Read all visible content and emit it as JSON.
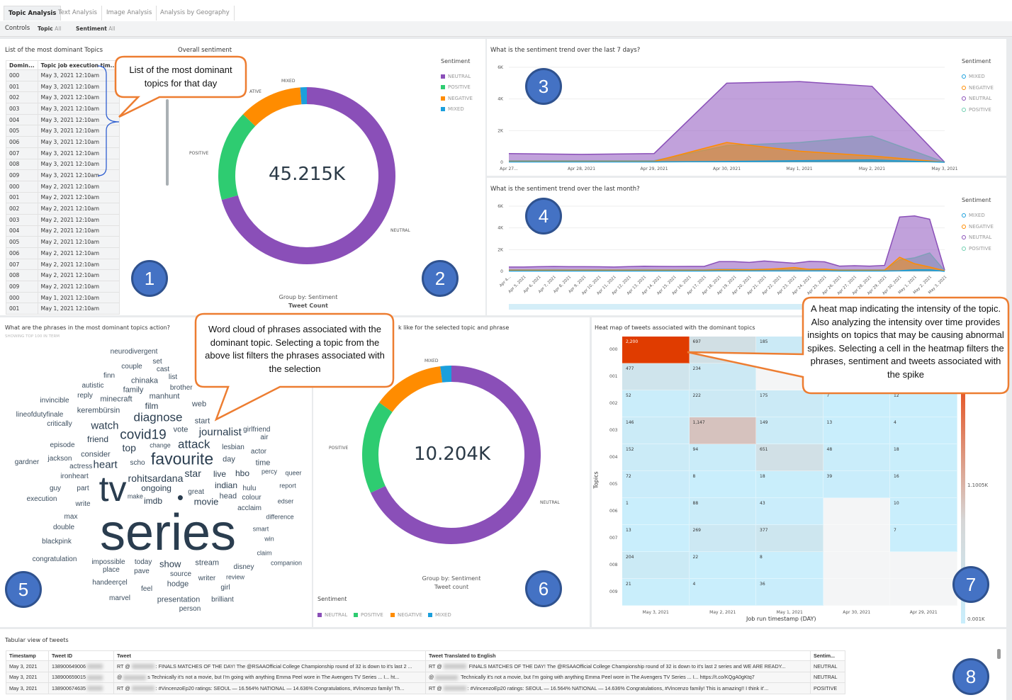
{
  "tabs": [
    {
      "label": "Topic Analysis",
      "active": true
    },
    {
      "label": "Text Analysis"
    },
    {
      "label": "Image Analysis"
    },
    {
      "label": "Analysis by Geography"
    }
  ],
  "controls": {
    "label": "Controls",
    "topic_label": "Topic",
    "topic_value": "All",
    "sentiment_label": "Sentiment",
    "sentiment_value": "All"
  },
  "colors": {
    "neutral": "#8a4fb8",
    "positive": "#2ecc71",
    "negative": "#ff8c00",
    "mixed": "#1b9fdc",
    "callout_border": "#ed7d31",
    "badge": "#4472c4"
  },
  "topics_panel": {
    "title": "List of the most dominant Topics",
    "columns": [
      "Domin...",
      "Topic job execution tim..."
    ],
    "rows": [
      [
        "000",
        "May 3, 2021 12:10am"
      ],
      [
        "001",
        "May 3, 2021 12:10am"
      ],
      [
        "002",
        "May 3, 2021 12:10am"
      ],
      [
        "003",
        "May 3, 2021 12:10am"
      ],
      [
        "004",
        "May 3, 2021 12:10am"
      ],
      [
        "005",
        "May 3, 2021 12:10am"
      ],
      [
        "006",
        "May 3, 2021 12:10am"
      ],
      [
        "007",
        "May 3, 2021 12:10am"
      ],
      [
        "008",
        "May 3, 2021 12:10am"
      ],
      [
        "009",
        "May 3, 2021 12:10am"
      ],
      [
        "000",
        "May 2, 2021 12:10am"
      ],
      [
        "001",
        "May 2, 2021 12:10am"
      ],
      [
        "002",
        "May 2, 2021 12:10am"
      ],
      [
        "003",
        "May 2, 2021 12:10am"
      ],
      [
        "004",
        "May 2, 2021 12:10am"
      ],
      [
        "005",
        "May 2, 2021 12:10am"
      ],
      [
        "006",
        "May 2, 2021 12:10am"
      ],
      [
        "007",
        "May 2, 2021 12:10am"
      ],
      [
        "008",
        "May 2, 2021 12:10am"
      ],
      [
        "009",
        "May 2, 2021 12:10am"
      ],
      [
        "000",
        "May 1, 2021 12:10am"
      ],
      [
        "001",
        "May 1, 2021 12:10am"
      ]
    ]
  },
  "chart_data": [
    {
      "type": "pie",
      "title": "Overall sentiment",
      "center_label": "45.215K",
      "labels": [
        "NEUTRAL",
        "POSITIVE",
        "NEGATIVE",
        "MIXED"
      ],
      "values": [
        70.6,
        16.6,
        11.6,
        1.2
      ],
      "slice_labels": [
        "NEUTRAL",
        "POSITIVE",
        "ATIVE",
        "MIXED"
      ],
      "legend_title": "Sentiment",
      "legend": [
        "NEUTRAL",
        "POSITIVE",
        "NEGATIVE",
        "MIXED"
      ],
      "footer": [
        "Group by: Sentiment",
        "Tweet Count"
      ]
    },
    {
      "type": "area",
      "title": "What is the sentiment trend over the last 7 days?",
      "legend_title": "Sentiment",
      "legend": [
        "MIXED",
        "NEGATIVE",
        "NEUTRAL",
        "POSITIVE"
      ],
      "x": [
        "Apr 27...",
        "Apr 28, 2021",
        "Apr 29, 2021",
        "Apr 30, 2021",
        "May 1, 2021",
        "May 2, 2021",
        "May 3, 2021"
      ],
      "yticks": [
        "0",
        "2K",
        "4K",
        "6K"
      ],
      "ylim": [
        0,
        6000
      ],
      "series": [
        {
          "name": "NEUTRAL",
          "values": [
            550,
            500,
            550,
            5000,
            5100,
            4800,
            0
          ]
        },
        {
          "name": "POSITIVE",
          "values": [
            100,
            100,
            100,
            1050,
            1250,
            1650,
            0
          ]
        },
        {
          "name": "NEGATIVE",
          "values": [
            50,
            50,
            50,
            1250,
            700,
            400,
            0
          ]
        },
        {
          "name": "MIXED",
          "values": [
            20,
            20,
            20,
            50,
            100,
            150,
            0
          ]
        }
      ]
    },
    {
      "type": "area",
      "title": "What is the sentiment trend over the last month?",
      "legend_title": "Sentiment",
      "legend": [
        "MIXED",
        "NEGATIVE",
        "NEUTRAL",
        "POSITIVE"
      ],
      "x": [
        "Apr 4...",
        "Apr 5, 2021",
        "Apr 6, 2021",
        "Apr 7, 2021",
        "Apr 8, 2021",
        "Apr 9, 2021",
        "Apr 10, 2021",
        "Apr 11, 2021",
        "Apr 12, 2021",
        "Apr 13, 2021",
        "Apr 14, 2021",
        "Apr 15, 2021",
        "Apr 16, 2021",
        "Apr 17, 2021",
        "Apr 18, 2021",
        "Apr 19, 2021",
        "Apr 20, 2021",
        "Apr 21, 2021",
        "Apr 22, 2021",
        "Apr 23, 2021",
        "Apr 24, 2021",
        "Apr 25, 2021",
        "Apr 26, 2021",
        "Apr 27, 2021",
        "Apr 28, 2021",
        "Apr 29, 2021",
        "Apr 30, 2021",
        "May 1, 2021",
        "May 2, 2021",
        "May 3, 2021"
      ],
      "yticks": [
        "0",
        "2K",
        "4K",
        "6K"
      ],
      "ylim": [
        0,
        6000
      ],
      "series": [
        {
          "name": "NEUTRAL",
          "values": [
            400,
            400,
            430,
            450,
            430,
            430,
            420,
            400,
            440,
            470,
            460,
            450,
            460,
            460,
            900,
            900,
            820,
            950,
            850,
            750,
            920,
            880,
            480,
            520,
            480,
            550,
            5000,
            5100,
            4800,
            100
          ]
        },
        {
          "name": "POSITIVE",
          "values": [
            150,
            150,
            150,
            160,
            150,
            150,
            150,
            140,
            150,
            160,
            150,
            150,
            150,
            150,
            200,
            200,
            180,
            200,
            190,
            180,
            200,
            200,
            150,
            150,
            150,
            150,
            1050,
            1250,
            1700,
            50
          ]
        },
        {
          "name": "NEGATIVE",
          "values": [
            100,
            100,
            100,
            100,
            100,
            100,
            100,
            100,
            100,
            100,
            100,
            100,
            100,
            100,
            150,
            150,
            150,
            180,
            250,
            350,
            180,
            200,
            100,
            100,
            100,
            100,
            1300,
            700,
            400,
            50
          ]
        },
        {
          "name": "MIXED",
          "values": [
            30,
            30,
            30,
            30,
            30,
            30,
            30,
            30,
            30,
            30,
            30,
            30,
            30,
            30,
            40,
            40,
            40,
            40,
            40,
            40,
            40,
            40,
            30,
            30,
            30,
            30,
            50,
            150,
            150,
            0
          ]
        }
      ]
    },
    {
      "type": "pie",
      "title": "k like for the selected topic and phrase",
      "center_label": "10.204K",
      "labels": [
        "NEUTRAL",
        "POSITIVE",
        "NEGATIVE",
        "MIXED"
      ],
      "values": [
        68,
        17,
        13,
        2
      ],
      "slice_labels": [
        "NEUTRAL",
        "POSITIVE",
        "",
        "MIXED"
      ],
      "legend_title": "Sentiment",
      "legend": [
        "NEUTRAL",
        "POSITIVE",
        "NEGATIVE",
        "MIXED"
      ],
      "footer": [
        "Group by: Sentiment",
        "Tweet count"
      ]
    },
    {
      "type": "heatmap",
      "title": "Heat map of tweets associated with the dominant topics",
      "ylabel": "Topics",
      "xlabel": "Job run timestamp (DAY)",
      "x": [
        "May 3, 2021",
        "May 2, 2021",
        "May 1, 2021",
        "Apr 30, 2021",
        "Apr 29, 2021"
      ],
      "y": [
        "000",
        "001",
        "002",
        "003",
        "004",
        "005",
        "006",
        "007",
        "008",
        "009"
      ],
      "values": [
        [
          2200,
          697,
          185,
          null,
          null
        ],
        [
          477,
          234,
          null,
          null,
          null
        ],
        [
          52,
          222,
          175,
          7,
          12
        ],
        [
          146,
          1147,
          149,
          13,
          4
        ],
        [
          152,
          94,
          651,
          48,
          18
        ],
        [
          72,
          8,
          18,
          39,
          16
        ],
        [
          1,
          88,
          43,
          null,
          10
        ],
        [
          13,
          269,
          377,
          null,
          7
        ],
        [
          204,
          22,
          8,
          null,
          null
        ],
        [
          21,
          4,
          36,
          null,
          null
        ]
      ],
      "value_labels": [
        [
          "2,200",
          "697",
          "185",
          "",
          ""
        ],
        [
          "477",
          "234",
          "",
          "",
          ""
        ],
        [
          "52",
          "222",
          "175",
          "7",
          "12"
        ],
        [
          "146",
          "1,147",
          "149",
          "13",
          "4"
        ],
        [
          "152",
          "94",
          "651",
          "48",
          "18"
        ],
        [
          "72",
          "8",
          "18",
          "39",
          "16"
        ],
        [
          "1",
          "88",
          "43",
          "",
          "10"
        ],
        [
          "13",
          "269",
          "377",
          "",
          "7"
        ],
        [
          "204",
          "22",
          "8",
          "",
          ""
        ],
        [
          "21",
          "4",
          "36",
          "",
          ""
        ]
      ],
      "scale_labels": [
        "1.1005K",
        "0.001K"
      ],
      "range": [
        1,
        2200
      ]
    }
  ],
  "wordcloud": {
    "title": "What are the phrases in the most dominant topics action?",
    "subtitle": "SHOWING TOP 100 IN TERM",
    "words": [
      "neurodivergent",
      "set",
      "couple",
      "cast",
      "finn",
      "list",
      "chinaka",
      "autistic",
      "family",
      "brother",
      "reply",
      "invincible",
      "minecraft",
      "manhunt",
      "film",
      "web",
      "kerembürsin",
      "lineofdutyfinale",
      "diagnose",
      "critically",
      "watch",
      "start",
      "girlfriend",
      "covid19",
      "vote",
      "journalist",
      "air",
      "friend",
      "episode",
      "top",
      "change",
      "attack",
      "lesbian",
      "actress",
      "actor",
      "gardner",
      "jackson",
      "consider",
      "scho",
      "favourite",
      "day",
      "time",
      "ironheart",
      "heart",
      "ongoing",
      "star",
      "live",
      "hbo",
      "percy",
      "queer",
      "guy",
      "part",
      "tv",
      "rohitsardana",
      "indian",
      "hulu",
      "report",
      "execution",
      "write",
      "imdb",
      "great",
      "head",
      "colour",
      "edser",
      "make",
      "•",
      "movie",
      "acclaim",
      "max",
      "difference",
      "series",
      "double",
      "smart",
      "blackpink",
      "win",
      "claim",
      "congratulation",
      "impossible",
      "today",
      "show",
      "stream",
      "disney",
      "companion",
      "place",
      "pave",
      "source",
      "writer",
      "review",
      "handeerçel",
      "hodge",
      "feel",
      "girl",
      "marvel",
      "presentation",
      "brilliant",
      "person"
    ]
  },
  "tweets": {
    "title": "Tabular view of tweets",
    "columns": [
      "Timestamp",
      "Tweet ID",
      "Tweet",
      "Tweet Translated to English",
      "Sentim..."
    ],
    "rows": [
      {
        "ts": "May 3, 2021",
        "id": "138900649006",
        "tweet_pre": "RT @",
        "tweet": ": FINALS MATCHES OF THE DAY! The @RSAAOfficial College Championship round of 32 is down to it's last 2 ...",
        "tr_pre": "RT @",
        "tr": " FINALS MATCHES OF THE DAY! The @RSAAOfficial College Championship round of 32 is down to it's last 2 series and WE ARE READY...",
        "sent": "NEUTRAL"
      },
      {
        "ts": "May 3, 2021",
        "id": "138900659015",
        "tweet_pre": "@",
        "tweet": "s Technically it's not a movie, but I'm going with anything Emma Peel wore in The Avengers TV Series ... I... ht...",
        "tr_pre": "@",
        "tr": " Technically it's not a movie, but I'm going with anything Emma Peel wore in The Avengers TV Series ... I... https://t.co/KQgA0gKtq7",
        "sent": "NEUTRAL"
      },
      {
        "ts": "May 3, 2021",
        "id": "138900674635",
        "tweet_pre": "RT @",
        "tweet": ": #VincenzoEp20 ratings: SEOUL — 16.564% NATIONAL — 14.636% Congratulations, #Vincenzo family! Th...",
        "tr_pre": "RT @",
        "tr": ": #VincenzoEp20 ratings: SEOUL — 16.564% NATIONAL — 14.636% Congratulations, #Vincenzo family! This is amazing!! I think it'...",
        "sent": "POSITIVE"
      }
    ]
  },
  "callouts": {
    "topics": "List of the most dominant topics for that day",
    "wordcloud": "Word cloud of phrases associated with the dominant topic. Selecting a topic from the above list filters the phrases associated with the selection",
    "heatmap": "A heat map indicating the intensity of the topic. Also analyzing the intensity over time provides insights on topics that may be causing abnormal spikes. Selecting a cell in the heatmap filters the phrases, sentiment and tweets associated with the spike"
  },
  "badges": [
    "1",
    "2",
    "3",
    "4",
    "5",
    "6",
    "7",
    "8"
  ]
}
